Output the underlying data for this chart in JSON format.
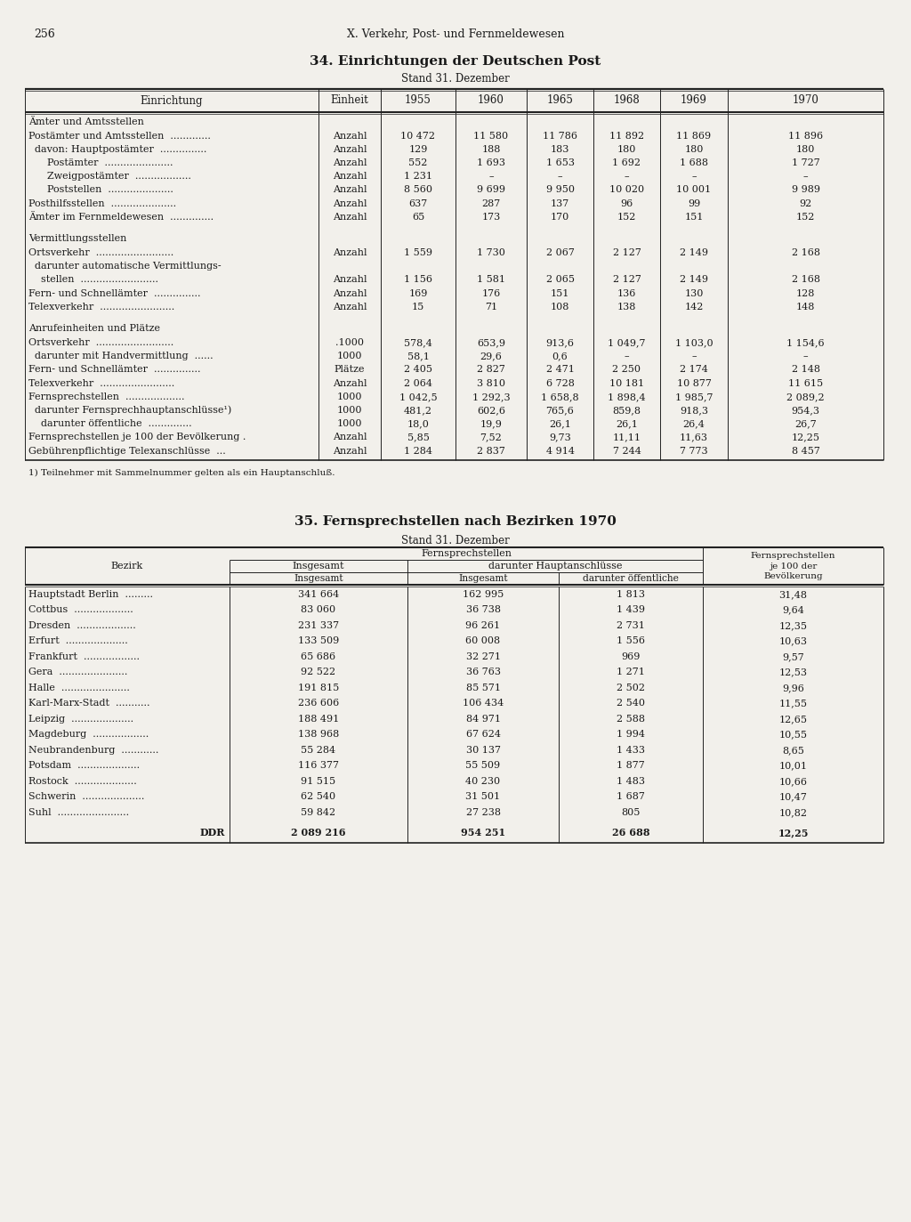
{
  "page_number": "256",
  "chapter_header": "X. Verkehr, Post- und Fernmeldewesen",
  "table1_title": "34. Einrichtungen der Deutschen Post",
  "table1_subtitle": "Stand 31. Dezember",
  "table1_footnote": "1) Teilnehmer mit Sammelnummer gelten als ein Hauptanschluß.",
  "table2_title": "35. Fernsprechstellen nach Bezirken 1970",
  "table2_subtitle": "Stand 31. Dezember",
  "bg_color": "#f2f0eb",
  "text_color": "#1a1a1a",
  "line_color": "#222222",
  "t1_rows": [
    {
      "text": "Ämter und Amtsstellen",
      "einheit": "",
      "vals": [
        "",
        "",
        "",
        "",
        "",
        ""
      ],
      "style": "section"
    },
    {
      "text": "Postämter und Amtsstellen  .............",
      "einheit": "Anzahl",
      "vals": [
        "10 472",
        "11 580",
        "11 786",
        "11 892",
        "11 869",
        "11 896"
      ],
      "style": "normal"
    },
    {
      "text": "  davon: Hauptpostämter  ...............",
      "einheit": "Anzahl",
      "vals": [
        "129",
        "188",
        "183",
        "180",
        "180",
        "180"
      ],
      "style": "normal"
    },
    {
      "text": "      Postämter  ......................",
      "einheit": "Anzahl",
      "vals": [
        "552",
        "1 693",
        "1 653",
        "1 692",
        "1 688",
        "1 727"
      ],
      "style": "normal"
    },
    {
      "text": "      Zweigpostämter  ..................",
      "einheit": "Anzahl",
      "vals": [
        "1 231",
        "–",
        "–",
        "–",
        "–",
        "–"
      ],
      "style": "normal"
    },
    {
      "text": "      Poststellen  .....................",
      "einheit": "Anzahl",
      "vals": [
        "8 560",
        "9 699",
        "9 950",
        "10 020",
        "10 001",
        "9 989"
      ],
      "style": "normal"
    },
    {
      "text": "Posthilfsstellen  .....................",
      "einheit": "Anzahl",
      "vals": [
        "637",
        "287",
        "137",
        "96",
        "99",
        "92"
      ],
      "style": "normal"
    },
    {
      "text": "Ämter im Fernmeldewesen  ..............",
      "einheit": "Anzahl",
      "vals": [
        "65",
        "173",
        "170",
        "152",
        "151",
        "152"
      ],
      "style": "normal"
    },
    {
      "text": "",
      "einheit": "",
      "vals": [
        "",
        "",
        "",
        "",
        "",
        ""
      ],
      "style": "gap"
    },
    {
      "text": "Vermittlungsstellen",
      "einheit": "",
      "vals": [
        "",
        "",
        "",
        "",
        "",
        ""
      ],
      "style": "section"
    },
    {
      "text": "Ortsverkehr  .........................",
      "einheit": "Anzahl",
      "vals": [
        "1 559",
        "1 730",
        "2 067",
        "2 127",
        "2 149",
        "2 168"
      ],
      "style": "normal"
    },
    {
      "text": "  darunter automatische Vermittlungs-",
      "einheit": "",
      "vals": [
        "",
        "",
        "",
        "",
        "",
        ""
      ],
      "style": "normal"
    },
    {
      "text": "    stellen  .........................",
      "einheit": "Anzahl",
      "vals": [
        "1 156",
        "1 581",
        "2 065",
        "2 127",
        "2 149",
        "2 168"
      ],
      "style": "normal"
    },
    {
      "text": "Fern- und Schnellämter  ...............",
      "einheit": "Anzahl",
      "vals": [
        "169",
        "176",
        "151",
        "136",
        "130",
        "128"
      ],
      "style": "normal"
    },
    {
      "text": "Telexverkehr  ........................",
      "einheit": "Anzahl",
      "vals": [
        "15",
        "71",
        "108",
        "138",
        "142",
        "148"
      ],
      "style": "normal"
    },
    {
      "text": "",
      "einheit": "",
      "vals": [
        "",
        "",
        "",
        "",
        "",
        ""
      ],
      "style": "gap"
    },
    {
      "text": "Anrufeinheiten und Plätze",
      "einheit": "",
      "vals": [
        "",
        "",
        "",
        "",
        "",
        ""
      ],
      "style": "section"
    },
    {
      "text": "Ortsverkehr  .........................",
      "einheit": ".1000",
      "vals": [
        "578,4",
        "653,9",
        "913,6",
        "1 049,7",
        "1 103,0",
        "1 154,6"
      ],
      "style": "normal"
    },
    {
      "text": "  darunter mit Handvermittlung  ......",
      "einheit": "1000",
      "vals": [
        "58,1",
        "29,6",
        "0,6",
        "–",
        "–",
        "–"
      ],
      "style": "normal"
    },
    {
      "text": "Fern- und Schnellämter  ...............",
      "einheit": "Plätze",
      "vals": [
        "2 405",
        "2 827",
        "2 471",
        "2 250",
        "2 174",
        "2 148"
      ],
      "style": "normal"
    },
    {
      "text": "Telexverkehr  ........................",
      "einheit": "Anzahl",
      "vals": [
        "2 064",
        "3 810",
        "6 728",
        "10 181",
        "10 877",
        "11 615"
      ],
      "style": "normal"
    },
    {
      "text": "Fernsprechstellen  ...................",
      "einheit": "1000",
      "vals": [
        "1 042,5",
        "1 292,3",
        "1 658,8",
        "1 898,4",
        "1 985,7",
        "2 089,2"
      ],
      "style": "normal"
    },
    {
      "text": "  darunter Fernsprechhauptanschlüsse¹)",
      "einheit": "1000",
      "vals": [
        "481,2",
        "602,6",
        "765,6",
        "859,8",
        "918,3",
        "954,3"
      ],
      "style": "normal"
    },
    {
      "text": "    darunter öffentliche  ..............",
      "einheit": "1000",
      "vals": [
        "18,0",
        "19,9",
        "26,1",
        "26,1",
        "26,4",
        "26,7"
      ],
      "style": "normal"
    },
    {
      "text": "Fernsprechstellen je 100 der Bevölkerung .",
      "einheit": "Anzahl",
      "vals": [
        "5,85",
        "7,52",
        "9,73",
        "11,11",
        "11,63",
        "12,25"
      ],
      "style": "normal"
    },
    {
      "text": "Gebührenpflichtige Telexanschlüsse  ...",
      "einheit": "Anzahl",
      "vals": [
        "1 284",
        "2 837",
        "4 914",
        "7 244",
        "7 773",
        "8 457"
      ],
      "style": "normal"
    }
  ],
  "t2_rows": [
    [
      "Hauptstadt Berlin  .........",
      "341 664",
      "162 995",
      "1 813",
      "31,48"
    ],
    [
      "Cottbus  ...................",
      "83 060",
      "36 738",
      "1 439",
      "9,64"
    ],
    [
      "Dresden  ...................",
      "231 337",
      "96 261",
      "2 731",
      "12,35"
    ],
    [
      "Erfurt  ....................",
      "133 509",
      "60 008",
      "1 556",
      "10,63"
    ],
    [
      "Frankfurt  ..................",
      "65 686",
      "32 271",
      "969",
      "9,57"
    ],
    [
      "Gera  ......................",
      "92 522",
      "36 763",
      "1 271",
      "12,53"
    ],
    [
      "Halle  ......................",
      "191 815",
      "85 571",
      "2 502",
      "9,96"
    ],
    [
      "Karl-Marx-Stadt  ...........",
      "236 606",
      "106 434",
      "2 540",
      "11,55"
    ],
    [
      "Leipzig  ....................",
      "188 491",
      "84 971",
      "2 588",
      "12,65"
    ],
    [
      "Magdeburg  ..................",
      "138 968",
      "67 624",
      "1 994",
      "10,55"
    ],
    [
      "Neubrandenburg  ............",
      "55 284",
      "30 137",
      "1 433",
      "8,65"
    ],
    [
      "Potsdam  ....................",
      "116 377",
      "55 509",
      "1 877",
      "10,01"
    ],
    [
      "Rostock  ....................",
      "91 515",
      "40 230",
      "1 483",
      "10,66"
    ],
    [
      "Schwerin  ....................",
      "62 540",
      "31 501",
      "1 687",
      "10,47"
    ],
    [
      "Suhl  .......................",
      "59 842",
      "27 238",
      "805",
      "10,82"
    ]
  ],
  "t2_total": [
    "DDR",
    "2 089 216",
    "954 251",
    "26 688",
    "12,25"
  ]
}
